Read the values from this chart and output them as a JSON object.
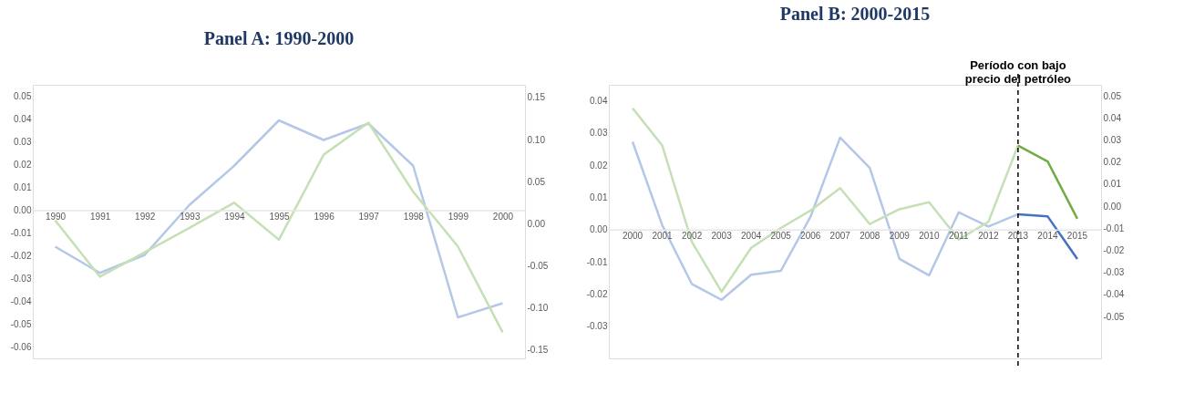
{
  "chart_data": [
    {
      "type": "line",
      "title": "Panel A: 1990-2000",
      "categories": [
        "1990",
        "1991",
        "1992",
        "1993",
        "1994",
        "1995",
        "1996",
        "1997",
        "1998",
        "1999",
        "2000"
      ],
      "ylim": [
        -0.065,
        0.055
      ],
      "yticks": [
        {
          "value": 0.05,
          "label": "0.05"
        },
        {
          "value": 0.04,
          "label": "0.04"
        },
        {
          "value": 0.03,
          "label": "0.03"
        },
        {
          "value": 0.02,
          "label": "0.02"
        },
        {
          "value": 0.01,
          "label": "0.01"
        },
        {
          "value": 0,
          "label": "0.00"
        },
        {
          "value": -0.01,
          "label": "-0.01"
        },
        {
          "value": -0.02,
          "label": "-0.02"
        },
        {
          "value": -0.03,
          "label": "-0.03"
        },
        {
          "value": -0.04,
          "label": "-0.04"
        },
        {
          "value": -0.05,
          "label": "-0.05"
        },
        {
          "value": -0.06,
          "label": "-0.06"
        }
      ],
      "y2lim": [
        -0.16,
        0.165
      ],
      "y2ticks": [
        {
          "value": 0.15,
          "label": "0.15"
        },
        {
          "value": 0.1,
          "label": "0.10"
        },
        {
          "value": 0.05,
          "label": "0.05"
        },
        {
          "value": 0,
          "label": "0.00"
        },
        {
          "value": -0.05,
          "label": "-0.05"
        },
        {
          "value": -0.1,
          "label": "-0.10"
        },
        {
          "value": -0.15,
          "label": "-0.15"
        }
      ],
      "grid": false,
      "series": [
        {
          "color": "#b4c7e7",
          "values": [
            -0.016,
            -0.0275,
            -0.0196,
            0.0023,
            0.0195,
            0.0394,
            0.0308,
            0.038,
            0.0195,
            -0.047,
            -0.0408
          ]
        },
        {
          "color": "#c5e0b4",
          "axis": "y2",
          "values": [
            0.004,
            -0.063,
            -0.034,
            -0.005,
            0.025,
            -0.019,
            0.082,
            0.12,
            0.038,
            -0.027,
            -0.129
          ]
        }
      ]
    },
    {
      "type": "line",
      "title": "Panel B: 2000-2015",
      "categories": [
        "2000",
        "2001",
        "2002",
        "2003",
        "2004",
        "2005",
        "2006",
        "2007",
        "2008",
        "2009",
        "2010",
        "2011",
        "2012",
        "2013",
        "2014",
        "2015"
      ],
      "ylim": [
        -0.04,
        0.045
      ],
      "yticks": [
        {
          "value": 0.04,
          "label": "0.04"
        },
        {
          "value": 0.03,
          "label": "0.03"
        },
        {
          "value": 0.02,
          "label": "0.02"
        },
        {
          "value": 0.01,
          "label": "0.01"
        },
        {
          "value": 0,
          "label": "0.00"
        },
        {
          "value": -0.01,
          "label": "-0.01"
        },
        {
          "value": -0.02,
          "label": "-0.02"
        },
        {
          "value": -0.03,
          "label": "-0.03"
        }
      ],
      "y2lim": [
        -0.069,
        0.055
      ],
      "y2ticks": [
        {
          "value": 0.05,
          "label": "0.05"
        },
        {
          "value": 0.04,
          "label": "0.04"
        },
        {
          "value": 0.03,
          "label": "0.03"
        },
        {
          "value": 0.02,
          "label": "0.02"
        },
        {
          "value": 0.01,
          "label": "0.01"
        },
        {
          "value": 0,
          "label": "0.00"
        },
        {
          "value": -0.01,
          "label": "-0.01"
        },
        {
          "value": -0.02,
          "label": "-0.02"
        },
        {
          "value": -0.03,
          "label": "-0.03"
        },
        {
          "value": -0.04,
          "label": "-0.04"
        },
        {
          "value": -0.05,
          "label": "-0.05"
        }
      ],
      "grid": false,
      "ref_lines": [
        {
          "axis": "x",
          "value": "2013",
          "label": "Período con bajo precio del petróleo",
          "color": "#000000",
          "line_style": "dashed"
        }
      ],
      "series": [
        {
          "color": "#b4c7e7",
          "values": [
            0.0273,
            0.0014,
            -0.0169,
            -0.0218,
            -0.014,
            -0.0128,
            0.004,
            0.0286,
            0.0192,
            -0.0091,
            -0.0142,
            0.0054,
            0.001,
            0.0048,
            null,
            null
          ]
        },
        {
          "color": "#c5e0b4",
          "axis": "y2",
          "values": [
            0.0444,
            0.0275,
            -0.0162,
            -0.0388,
            -0.0189,
            -0.0099,
            -0.002,
            0.0082,
            -0.0081,
            -0.0014,
            0.0018,
            -0.0151,
            -0.0071,
            0.0275,
            null,
            null
          ]
        },
        {
          "color": "#4472c4",
          "values": [
            null,
            null,
            null,
            null,
            null,
            null,
            null,
            null,
            null,
            null,
            null,
            null,
            null,
            0.0048,
            0.0041,
            -0.0091
          ]
        },
        {
          "color": "#70ad47",
          "axis": "y2",
          "values": [
            null,
            null,
            null,
            null,
            null,
            null,
            null,
            null,
            null,
            null,
            null,
            null,
            null,
            0.0275,
            0.0202,
            -0.0057
          ]
        }
      ]
    }
  ]
}
